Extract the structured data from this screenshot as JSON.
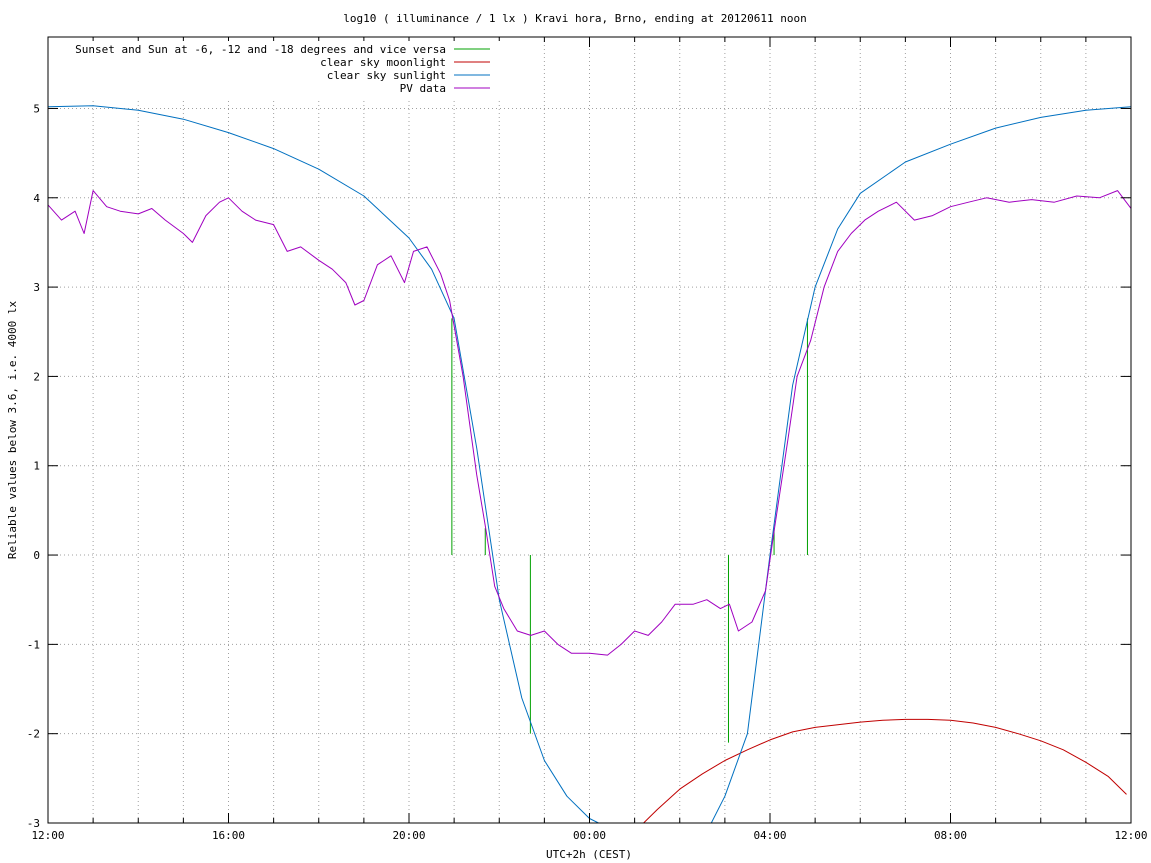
{
  "chart_data": {
    "type": "line",
    "title": "log10 ( illuminance / 1 lx ) Kravi hora, Brno, ending at 20120611 noon",
    "xlabel": "UTC+2h (CEST)",
    "ylabel": "Reliable values below 3.6, i.e. 4000 lx",
    "x_unit": "hours",
    "xlim": [
      12,
      36
    ],
    "ylim": [
      -3,
      5.8
    ],
    "x_ticks": [
      {
        "x": 12,
        "label": "12:00"
      },
      {
        "x": 16,
        "label": "16:00"
      },
      {
        "x": 20,
        "label": "20:00"
      },
      {
        "x": 24,
        "label": "00:00"
      },
      {
        "x": 28,
        "label": "04:00"
      },
      {
        "x": 32,
        "label": "08:00"
      },
      {
        "x": 36,
        "label": "12:00"
      }
    ],
    "y_ticks": [
      {
        "y": -3,
        "label": "-3"
      },
      {
        "y": -2,
        "label": "-2"
      },
      {
        "y": -1,
        "label": "-1"
      },
      {
        "y": 0,
        "label": "0"
      },
      {
        "y": 1,
        "label": "1"
      },
      {
        "y": 2,
        "label": "2"
      },
      {
        "y": 3,
        "label": "3"
      },
      {
        "y": 4,
        "label": "4"
      },
      {
        "y": 5,
        "label": "5"
      }
    ],
    "grid": true,
    "legend_position": "top-left",
    "series": [
      {
        "name": "Sunset and Sun at -6, -12 and -18 degrees and vice versa",
        "color": "#00a000",
        "style": "impulses",
        "points": [
          [
            20.95,
            2.65
          ],
          [
            21.69,
            0.3
          ],
          [
            22.69,
            -2.0
          ],
          [
            27.08,
            -2.1
          ],
          [
            28.09,
            0.3
          ],
          [
            28.83,
            2.65
          ]
        ]
      },
      {
        "name": "clear sky moonlight",
        "color": "#c00000",
        "style": "line",
        "points": [
          [
            25.2,
            -3.0
          ],
          [
            25.5,
            -2.85
          ],
          [
            26.0,
            -2.62
          ],
          [
            26.5,
            -2.45
          ],
          [
            27.0,
            -2.3
          ],
          [
            27.5,
            -2.18
          ],
          [
            28.0,
            -2.07
          ],
          [
            28.5,
            -1.98
          ],
          [
            29.0,
            -1.93
          ],
          [
            29.5,
            -1.9
          ],
          [
            30.0,
            -1.87
          ],
          [
            30.5,
            -1.85
          ],
          [
            31.0,
            -1.84
          ],
          [
            31.5,
            -1.84
          ],
          [
            32.0,
            -1.85
          ],
          [
            32.5,
            -1.88
          ],
          [
            33.0,
            -1.93
          ],
          [
            33.5,
            -2.0
          ],
          [
            34.0,
            -2.08
          ],
          [
            34.5,
            -2.18
          ],
          [
            35.0,
            -2.32
          ],
          [
            35.5,
            -2.48
          ],
          [
            35.9,
            -2.68
          ]
        ]
      },
      {
        "name": "clear sky sunlight",
        "color": "#0070c0",
        "style": "line",
        "points": [
          [
            12.0,
            5.02
          ],
          [
            13.0,
            5.03
          ],
          [
            14.0,
            4.98
          ],
          [
            15.0,
            4.88
          ],
          [
            16.0,
            4.73
          ],
          [
            17.0,
            4.55
          ],
          [
            18.0,
            4.32
          ],
          [
            19.0,
            4.02
          ],
          [
            20.0,
            3.55
          ],
          [
            20.5,
            3.2
          ],
          [
            21.0,
            2.65
          ],
          [
            21.5,
            1.2
          ],
          [
            22.0,
            -0.5
          ],
          [
            22.5,
            -1.6
          ],
          [
            23.0,
            -2.3
          ],
          [
            23.5,
            -2.7
          ],
          [
            24.0,
            -2.95
          ],
          [
            24.2,
            -3.0
          ],
          [
            26.7,
            -3.0
          ],
          [
            27.0,
            -2.7
          ],
          [
            27.5,
            -2.0
          ],
          [
            28.0,
            0.0
          ],
          [
            28.5,
            1.9
          ],
          [
            29.0,
            3.0
          ],
          [
            29.5,
            3.65
          ],
          [
            30.0,
            4.05
          ],
          [
            31.0,
            4.4
          ],
          [
            32.0,
            4.6
          ],
          [
            33.0,
            4.78
          ],
          [
            34.0,
            4.9
          ],
          [
            35.0,
            4.98
          ],
          [
            36.0,
            5.02
          ]
        ]
      },
      {
        "name": "PV data",
        "color": "#a000c0",
        "style": "line",
        "points": [
          [
            12.0,
            3.92
          ],
          [
            12.3,
            3.75
          ],
          [
            12.6,
            3.85
          ],
          [
            12.8,
            3.6
          ],
          [
            13.0,
            4.08
          ],
          [
            13.3,
            3.9
          ],
          [
            13.6,
            3.85
          ],
          [
            14.0,
            3.82
          ],
          [
            14.3,
            3.88
          ],
          [
            14.6,
            3.75
          ],
          [
            15.0,
            3.6
          ],
          [
            15.2,
            3.5
          ],
          [
            15.5,
            3.8
          ],
          [
            15.8,
            3.95
          ],
          [
            16.0,
            4.0
          ],
          [
            16.3,
            3.85
          ],
          [
            16.6,
            3.75
          ],
          [
            17.0,
            3.7
          ],
          [
            17.3,
            3.4
          ],
          [
            17.6,
            3.45
          ],
          [
            18.0,
            3.3
          ],
          [
            18.3,
            3.2
          ],
          [
            18.6,
            3.05
          ],
          [
            18.8,
            2.8
          ],
          [
            19.0,
            2.85
          ],
          [
            19.3,
            3.25
          ],
          [
            19.6,
            3.35
          ],
          [
            19.9,
            3.05
          ],
          [
            20.1,
            3.4
          ],
          [
            20.4,
            3.45
          ],
          [
            20.7,
            3.15
          ],
          [
            20.9,
            2.85
          ],
          [
            21.2,
            2.0
          ],
          [
            21.5,
            0.9
          ],
          [
            21.7,
            0.3
          ],
          [
            21.9,
            -0.35
          ],
          [
            22.1,
            -0.6
          ],
          [
            22.4,
            -0.85
          ],
          [
            22.7,
            -0.9
          ],
          [
            23.0,
            -0.85
          ],
          [
            23.3,
            -1.0
          ],
          [
            23.6,
            -1.1
          ],
          [
            24.0,
            -1.1
          ],
          [
            24.4,
            -1.12
          ],
          [
            24.7,
            -1.0
          ],
          [
            25.0,
            -0.85
          ],
          [
            25.3,
            -0.9
          ],
          [
            25.6,
            -0.75
          ],
          [
            25.9,
            -0.55
          ],
          [
            26.3,
            -0.55
          ],
          [
            26.6,
            -0.5
          ],
          [
            26.9,
            -0.6
          ],
          [
            27.1,
            -0.55
          ],
          [
            27.3,
            -0.85
          ],
          [
            27.6,
            -0.75
          ],
          [
            27.9,
            -0.4
          ],
          [
            28.1,
            0.3
          ],
          [
            28.4,
            1.3
          ],
          [
            28.6,
            2.0
          ],
          [
            28.9,
            2.4
          ],
          [
            29.2,
            3.0
          ],
          [
            29.5,
            3.4
          ],
          [
            29.8,
            3.6
          ],
          [
            30.1,
            3.75
          ],
          [
            30.4,
            3.85
          ],
          [
            30.8,
            3.95
          ],
          [
            31.2,
            3.75
          ],
          [
            31.6,
            3.8
          ],
          [
            32.0,
            3.9
          ],
          [
            32.4,
            3.95
          ],
          [
            32.8,
            4.0
          ],
          [
            33.3,
            3.95
          ],
          [
            33.8,
            3.98
          ],
          [
            34.3,
            3.95
          ],
          [
            34.8,
            4.02
          ],
          [
            35.3,
            4.0
          ],
          [
            35.7,
            4.08
          ],
          [
            36.0,
            3.88
          ]
        ]
      }
    ]
  }
}
